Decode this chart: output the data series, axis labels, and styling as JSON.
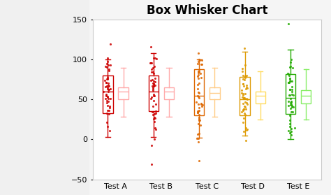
{
  "title": "Box Whisker Chart",
  "categories": [
    "Test A",
    "Test B",
    "Test C",
    "Test D",
    "Test E"
  ],
  "colors_dark": [
    "#cc0000",
    "#cc0000",
    "#dd6600",
    "#dd9900",
    "#22aa00"
  ],
  "colors_light": [
    "#ffaaaa",
    "#ffaaaa",
    "#ffcc88",
    "#ffdd66",
    "#88ee66"
  ],
  "ylim": [
    -50,
    150
  ],
  "yticks": [
    -50,
    0,
    50,
    100,
    150
  ],
  "box_stats_left": [
    {
      "q1": 33,
      "median": 60,
      "q3": 80,
      "whislo": 3,
      "whishi": 100
    },
    {
      "q1": 35,
      "median": 60,
      "q3": 80,
      "whislo": 3,
      "whishi": 108
    },
    {
      "q1": 30,
      "median": 55,
      "q3": 88,
      "whislo": 2,
      "whishi": 100
    },
    {
      "q1": 30,
      "median": 50,
      "q3": 78,
      "whislo": 5,
      "whishi": 110
    },
    {
      "q1": 32,
      "median": 52,
      "q3": 82,
      "whislo": 0,
      "whishi": 112
    }
  ],
  "box_stats_right": [
    {
      "q1": 50,
      "median": 60,
      "q3": 65,
      "whislo": 28,
      "whishi": 90
    },
    {
      "q1": 50,
      "median": 60,
      "q3": 65,
      "whislo": 28,
      "whishi": 90
    },
    {
      "q1": 50,
      "median": 58,
      "q3": 65,
      "whislo": 28,
      "whishi": 90
    },
    {
      "q1": 45,
      "median": 55,
      "q3": 60,
      "whislo": 25,
      "whishi": 85
    },
    {
      "q1": 45,
      "median": 55,
      "q3": 62,
      "whislo": 25,
      "whishi": 88
    }
  ],
  "scatter_params": [
    {
      "mean": 60,
      "std": 25,
      "n": 50,
      "seed": 10
    },
    {
      "mean": 58,
      "std": 28,
      "n": 50,
      "seed": 20
    },
    {
      "mean": 55,
      "std": 28,
      "n": 50,
      "seed": 30
    },
    {
      "mean": 50,
      "std": 28,
      "n": 50,
      "seed": 40
    },
    {
      "mean": 52,
      "std": 28,
      "n": 50,
      "seed": 50
    }
  ],
  "sidebar_color": "#f0f0f0",
  "plot_bg": "#ffffff",
  "outer_bg": "#f5f5f5",
  "figsize": [
    4.74,
    2.79
  ],
  "dpi": 100,
  "title_fontsize": 12,
  "tick_fontsize": 8
}
